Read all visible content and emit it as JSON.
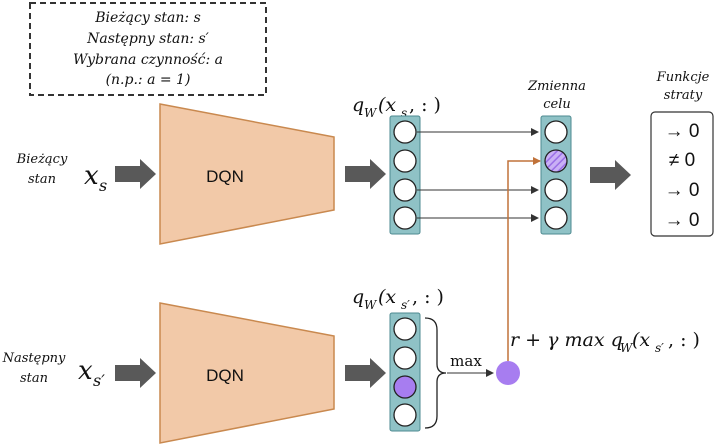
{
  "legend": {
    "line1": "Bieżący stan: s",
    "line2": "Następny stan: s′",
    "line3": "Wybrana czynność: a",
    "line4": "(n.p.: a = 1)"
  },
  "top": {
    "input_label_line1": "Bieżący",
    "input_label_line2": "stan",
    "input_symbol": "x",
    "input_subscript": "s",
    "network_label": "DQN",
    "q_label": "q",
    "q_sub": "W",
    "q_arg_open": "(x",
    "q_arg_sub": "s",
    "q_arg_close": ", : )"
  },
  "target": {
    "title_line1": "Zmienna",
    "title_line2": "celu"
  },
  "loss": {
    "title_line1": "Funkcje",
    "title_line2": "straty",
    "values": [
      "→ 0",
      "≠ 0",
      "→ 0",
      "→ 0"
    ]
  },
  "bottom": {
    "input_label_line1": "Następny",
    "input_label_line2": "stan",
    "input_symbol": "x",
    "input_subscript": "s′",
    "network_label": "DQN",
    "q_label": "q",
    "q_sub": "W",
    "q_arg_open": "(x",
    "q_arg_sub": "s′",
    "q_arg_close": ", : )",
    "max_label": "max"
  },
  "formula": {
    "text": "r + γ max q",
    "sub_w": "W",
    "arg_open": "(x",
    "arg_sub": "s′",
    "arg_close": ", : )"
  },
  "colors": {
    "trapezoid_fill": "#f2c9a8",
    "trapezoid_stroke": "#c9894f",
    "column_fill": "#8fc2c6",
    "highlight_purple": "#a77df0",
    "arrow_gray": "#595959",
    "orange_line": "#c0723a"
  }
}
